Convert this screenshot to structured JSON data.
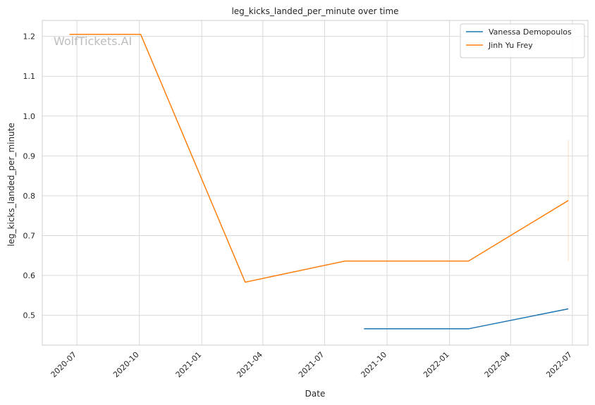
{
  "chart_data": {
    "type": "line",
    "title": "leg_kicks_landed_per_minute over time",
    "xlabel": "Date",
    "ylabel": "leg_kicks_landed_per_minute",
    "watermark": "WolfTickets.AI",
    "x_ticks": [
      "2020-07",
      "2020-10",
      "2021-01",
      "2021-04",
      "2021-07",
      "2021-10",
      "2022-01",
      "2022-04",
      "2022-07"
    ],
    "y_ticks": [
      "0.5",
      "0.6",
      "0.7",
      "0.8",
      "0.9",
      "1.0",
      "1.1",
      "1.2"
    ],
    "xlim": [
      "2020-05-11",
      "2022-07-24"
    ],
    "ylim": [
      0.425,
      1.24
    ],
    "grid": true,
    "legend_position": "top-right",
    "series": [
      {
        "name": "Vanessa Demopoulos",
        "color": "#1f77b4",
        "x": [
          "2021-08-28",
          "2022-01-29",
          "2022-06-25"
        ],
        "values": [
          0.466,
          0.466,
          0.516
        ]
      },
      {
        "name": "Jinh Yu Frey",
        "color": "#ff7f0e",
        "x": [
          "2020-06-20",
          "2020-10-03",
          "2021-03-06",
          "2021-07-31",
          "2022-01-29",
          "2022-06-25"
        ],
        "values": [
          1.205,
          1.205,
          0.583,
          0.636,
          0.636,
          0.788
        ],
        "error_band": {
          "x": "2022-06-25",
          "low": 0.636,
          "high": 0.94
        }
      }
    ]
  }
}
